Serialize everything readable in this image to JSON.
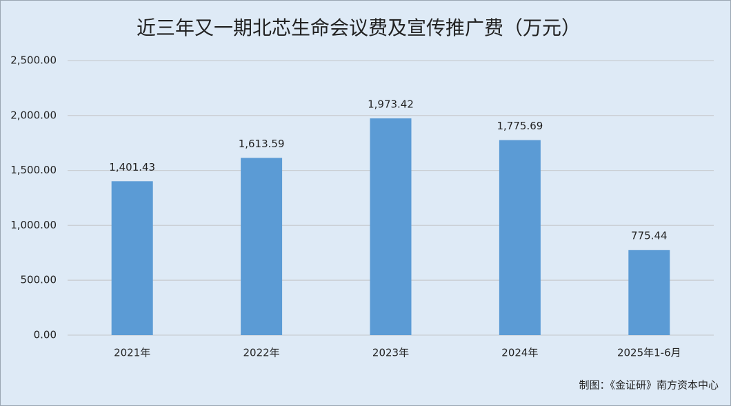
{
  "chart_data": {
    "type": "bar",
    "title": "近三年又一期北芯生命会议费及宣传推广费（万元）",
    "categories": [
      "2021年",
      "2022年",
      "2023年",
      "2024年",
      "2025年1-6月"
    ],
    "values": [
      1401.43,
      1613.59,
      1973.42,
      1775.69,
      775.44
    ],
    "value_labels": [
      "1,401.43",
      "1,613.59",
      "1,973.42",
      "1,775.69",
      "775.44"
    ],
    "color": "#5b9bd5",
    "ylim": [
      0,
      2500
    ],
    "yticks": [
      {
        "value": 0,
        "label": "0.00"
      },
      {
        "value": 500,
        "label": "500.00"
      },
      {
        "value": 1000,
        "label": "1,000.00"
      },
      {
        "value": 1500,
        "label": "1,500.00"
      },
      {
        "value": 2000,
        "label": "2,000.00"
      },
      {
        "value": 2500,
        "label": "2,500.00"
      }
    ],
    "grid": true,
    "source": "制图：《金证研》南方资本中心"
  }
}
